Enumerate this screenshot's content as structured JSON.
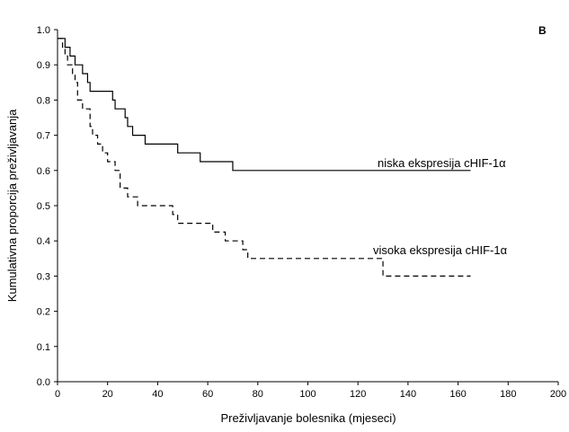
{
  "chart_data": {
    "type": "line",
    "panel_label": "B",
    "xlabel": "Preživljavanje bolesnika (mjeseci)",
    "ylabel": "Kumulativna proporcija preživljavanja",
    "xlim": [
      0,
      200
    ],
    "ylim": [
      0.0,
      1.0
    ],
    "xticks": [
      "0",
      "20",
      "40",
      "60",
      "80",
      "100",
      "120",
      "140",
      "160",
      "180",
      "200"
    ],
    "yticks": [
      "0.0",
      "0.1",
      "0.2",
      "0.3",
      "0.4",
      "0.5",
      "0.6",
      "0.7",
      "0.8",
      "0.9",
      "1.0"
    ],
    "grid": false,
    "series": [
      {
        "name": "niska ekspresija cHIF-1α",
        "style": "solid",
        "color": "#000000",
        "step_points": [
          [
            0,
            0.975
          ],
          [
            3,
            0.95
          ],
          [
            5,
            0.925
          ],
          [
            7,
            0.9
          ],
          [
            10,
            0.875
          ],
          [
            12,
            0.85
          ],
          [
            13,
            0.825
          ],
          [
            22,
            0.8
          ],
          [
            23,
            0.775
          ],
          [
            27,
            0.75
          ],
          [
            28,
            0.725
          ],
          [
            30,
            0.7
          ],
          [
            35,
            0.675
          ],
          [
            48,
            0.65
          ],
          [
            57,
            0.625
          ],
          [
            70,
            0.6
          ],
          [
            165,
            0.6
          ]
        ]
      },
      {
        "name": "visoka ekspresija cHIF-1α",
        "style": "dashed",
        "color": "#000000",
        "step_points": [
          [
            0,
            0.975
          ],
          [
            2,
            0.95
          ],
          [
            3,
            0.925
          ],
          [
            4,
            0.9
          ],
          [
            6,
            0.875
          ],
          [
            7,
            0.85
          ],
          [
            8,
            0.8
          ],
          [
            10,
            0.775
          ],
          [
            13,
            0.725
          ],
          [
            14,
            0.7
          ],
          [
            16,
            0.675
          ],
          [
            18,
            0.65
          ],
          [
            20,
            0.625
          ],
          [
            23,
            0.6
          ],
          [
            25,
            0.55
          ],
          [
            28,
            0.525
          ],
          [
            32,
            0.5
          ],
          [
            46,
            0.475
          ],
          [
            48,
            0.45
          ],
          [
            62,
            0.425
          ],
          [
            67,
            0.4
          ],
          [
            74,
            0.375
          ],
          [
            76,
            0.35
          ],
          [
            130,
            0.3
          ],
          [
            165,
            0.3
          ]
        ]
      }
    ]
  }
}
